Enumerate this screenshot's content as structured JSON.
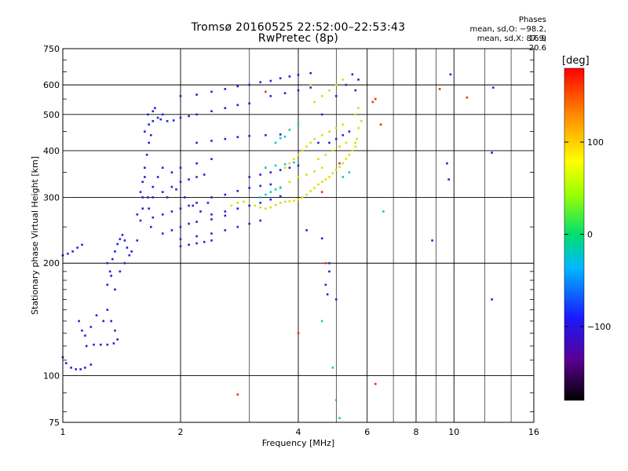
{
  "title": "Tromsø 20160525 22:52:00–22:53:43",
  "subtitle": "RwPretec (8p)",
  "phases": {
    "header": "Phases",
    "o_line": "mean, sd,O: −98.2, 16.9",
    "x_line": "mean, sd,X:  87.9, 20.6"
  },
  "colorbar": {
    "unit": "[deg]",
    "ticks": [
      "100",
      "0",
      "−100"
    ],
    "tick_values": [
      100,
      0,
      -100
    ],
    "range": [
      -180,
      180
    ]
  },
  "chart_data": {
    "type": "scatter",
    "xlabel": "Frequency [MHz]",
    "ylabel": "Stationary phase Virtual Height [km]",
    "x_scale": "log",
    "y_scale": "log",
    "xlim": [
      1,
      16
    ],
    "ylim": [
      75,
      750
    ],
    "x_ticks": [
      1,
      2,
      4,
      6,
      8,
      10,
      16
    ],
    "x_tick_labels": [
      "1",
      "2",
      "4",
      "6",
      "8",
      "10",
      "16"
    ],
    "y_ticks": [
      75,
      100,
      200,
      300,
      400,
      500,
      600,
      750
    ],
    "y_tick_labels": [
      "75",
      "100",
      "200",
      "300",
      "400",
      "500",
      "600",
      "750"
    ],
    "grid": true,
    "series": [
      {
        "role": "O-mode traces (blue/purple)",
        "color": "#2222dd",
        "points": [
          [
            1.0,
            112
          ],
          [
            1.02,
            108
          ],
          [
            1.05,
            105
          ],
          [
            1.08,
            104
          ],
          [
            1.11,
            104
          ],
          [
            1.14,
            105
          ],
          [
            1.18,
            107
          ],
          [
            1.15,
            120
          ],
          [
            1.2,
            121
          ],
          [
            1.25,
            121
          ],
          [
            1.3,
            121
          ],
          [
            1.35,
            122
          ],
          [
            1.38,
            125
          ],
          [
            1.1,
            140
          ],
          [
            1.12,
            132
          ],
          [
            1.14,
            128
          ],
          [
            1.18,
            135
          ],
          [
            1.22,
            145
          ],
          [
            1.27,
            140
          ],
          [
            1.3,
            150
          ],
          [
            1.33,
            140
          ],
          [
            1.36,
            132
          ],
          [
            1.0,
            210
          ],
          [
            1.03,
            212
          ],
          [
            1.06,
            215
          ],
          [
            1.09,
            220
          ],
          [
            1.12,
            224
          ],
          [
            1.3,
            175
          ],
          [
            1.32,
            190
          ],
          [
            1.34,
            205
          ],
          [
            1.36,
            215
          ],
          [
            1.38,
            225
          ],
          [
            1.4,
            232
          ],
          [
            1.42,
            238
          ],
          [
            1.44,
            230
          ],
          [
            1.46,
            220
          ],
          [
            1.3,
            200
          ],
          [
            1.33,
            185
          ],
          [
            1.36,
            170
          ],
          [
            1.4,
            190
          ],
          [
            1.44,
            200
          ],
          [
            1.48,
            210
          ],
          [
            1.5,
            215
          ],
          [
            1.55,
            230
          ],
          [
            1.58,
            260
          ],
          [
            1.6,
            300
          ],
          [
            1.62,
            340
          ],
          [
            1.64,
            390
          ],
          [
            1.66,
            420
          ],
          [
            1.68,
            440
          ],
          [
            1.55,
            270
          ],
          [
            1.6,
            280
          ],
          [
            1.65,
            300
          ],
          [
            1.7,
            320
          ],
          [
            1.75,
            340
          ],
          [
            1.8,
            360
          ],
          [
            1.62,
            450
          ],
          [
            1.66,
            470
          ],
          [
            1.7,
            480
          ],
          [
            1.75,
            490
          ],
          [
            1.8,
            500
          ],
          [
            1.7,
            510
          ],
          [
            1.65,
            500
          ],
          [
            1.72,
            520
          ],
          [
            1.78,
            485
          ],
          [
            1.85,
            480
          ],
          [
            1.92,
            482
          ],
          [
            2.0,
            490
          ],
          [
            2.1,
            495
          ],
          [
            2.2,
            500
          ],
          [
            2.4,
            510
          ],
          [
            2.6,
            520
          ],
          [
            2.8,
            530
          ],
          [
            3.0,
            535
          ],
          [
            2.0,
            560
          ],
          [
            2.2,
            565
          ],
          [
            2.4,
            575
          ],
          [
            2.6,
            585
          ],
          [
            2.8,
            595
          ],
          [
            3.0,
            600
          ],
          [
            3.2,
            610
          ],
          [
            3.4,
            615
          ],
          [
            3.6,
            625
          ],
          [
            3.8,
            632
          ],
          [
            4.0,
            638
          ],
          [
            4.3,
            645
          ],
          [
            3.4,
            560
          ],
          [
            3.7,
            570
          ],
          [
            4.0,
            580
          ],
          [
            4.3,
            590
          ],
          [
            2.2,
            420
          ],
          [
            2.4,
            425
          ],
          [
            2.6,
            430
          ],
          [
            2.8,
            435
          ],
          [
            3.0,
            438
          ],
          [
            3.3,
            440
          ],
          [
            3.6,
            442
          ],
          [
            1.7,
            300
          ],
          [
            1.8,
            310
          ],
          [
            1.9,
            320
          ],
          [
            2.0,
            330
          ],
          [
            2.1,
            335
          ],
          [
            2.2,
            340
          ],
          [
            2.3,
            345
          ],
          [
            1.7,
            265
          ],
          [
            1.8,
            270
          ],
          [
            1.9,
            275
          ],
          [
            2.0,
            280
          ],
          [
            2.1,
            285
          ],
          [
            2.2,
            290
          ],
          [
            1.8,
            240
          ],
          [
            1.9,
            245
          ],
          [
            2.0,
            250
          ],
          [
            2.1,
            255
          ],
          [
            2.2,
            258
          ],
          [
            2.4,
            262
          ],
          [
            2.6,
            268
          ],
          [
            2.0,
            232
          ],
          [
            2.2,
            236
          ],
          [
            2.4,
            240
          ],
          [
            2.6,
            245
          ],
          [
            2.8,
            250
          ],
          [
            3.0,
            255
          ],
          [
            3.2,
            260
          ],
          [
            2.0,
            222
          ],
          [
            2.1,
            224
          ],
          [
            2.2,
            226
          ],
          [
            2.3,
            228
          ],
          [
            2.4,
            230
          ],
          [
            2.4,
            270
          ],
          [
            2.6,
            275
          ],
          [
            2.8,
            280
          ],
          [
            3.0,
            285
          ],
          [
            3.2,
            290
          ],
          [
            3.4,
            296
          ],
          [
            3.6,
            302
          ],
          [
            2.4,
            300
          ],
          [
            2.6,
            305
          ],
          [
            2.8,
            312
          ],
          [
            3.0,
            318
          ],
          [
            3.2,
            322
          ],
          [
            3.4,
            325
          ],
          [
            3.0,
            340
          ],
          [
            3.2,
            345
          ],
          [
            3.4,
            350
          ],
          [
            3.6,
            355
          ],
          [
            3.8,
            360
          ],
          [
            4.0,
            365
          ],
          [
            1.9,
            350
          ],
          [
            2.0,
            360
          ],
          [
            2.2,
            370
          ],
          [
            2.4,
            380
          ],
          [
            1.85,
            300
          ],
          [
            1.95,
            315
          ],
          [
            2.05,
            300
          ],
          [
            2.15,
            285
          ],
          [
            2.25,
            275
          ],
          [
            2.35,
            290
          ],
          [
            1.6,
            330
          ],
          [
            1.62,
            360
          ],
          [
            1.58,
            310
          ],
          [
            1.66,
            280
          ],
          [
            1.68,
            250
          ],
          [
            4.2,
            245
          ],
          [
            4.6,
            233
          ],
          [
            4.8,
            200
          ],
          [
            4.8,
            190
          ],
          [
            4.7,
            175
          ],
          [
            4.75,
            165
          ],
          [
            5.0,
            160
          ],
          [
            9.8,
            640
          ],
          [
            9.6,
            370
          ],
          [
            9.7,
            335
          ],
          [
            8.8,
            230
          ],
          [
            12.5,
            160
          ],
          [
            12.5,
            395
          ],
          [
            12.6,
            590
          ],
          [
            5.6,
            580
          ],
          [
            5.7,
            620
          ],
          [
            5.5,
            640
          ],
          [
            5.3,
            600
          ],
          [
            5.0,
            560
          ],
          [
            4.6,
            500
          ],
          [
            4.5,
            420
          ],
          [
            4.8,
            420
          ],
          [
            5.0,
            430
          ],
          [
            5.2,
            440
          ],
          [
            5.4,
            450
          ]
        ]
      },
      {
        "role": "X-mode traces (yellow/green)",
        "color": "#dddd00",
        "points": [
          [
            2.7,
            285
          ],
          [
            2.8,
            290
          ],
          [
            2.9,
            292
          ],
          [
            3.0,
            290
          ],
          [
            3.1,
            285
          ],
          [
            3.2,
            282
          ],
          [
            3.3,
            280
          ],
          [
            3.4,
            282
          ],
          [
            3.5,
            286
          ],
          [
            3.6,
            290
          ],
          [
            3.7,
            292
          ],
          [
            3.8,
            293
          ],
          [
            3.9,
            294
          ],
          [
            4.0,
            296
          ],
          [
            4.1,
            300
          ],
          [
            4.2,
            305
          ],
          [
            4.3,
            312
          ],
          [
            4.4,
            318
          ],
          [
            4.5,
            325
          ],
          [
            4.6,
            330
          ],
          [
            4.7,
            335
          ],
          [
            4.8,
            340
          ],
          [
            4.9,
            348
          ],
          [
            5.0,
            355
          ],
          [
            5.1,
            362
          ],
          [
            5.2,
            370
          ],
          [
            5.3,
            380
          ],
          [
            5.4,
            390
          ],
          [
            5.5,
            400
          ],
          [
            5.6,
            410
          ],
          [
            5.6,
            420
          ],
          [
            5.65,
            430
          ],
          [
            3.7,
            360
          ],
          [
            3.8,
            370
          ],
          [
            3.9,
            380
          ],
          [
            4.0,
            390
          ],
          [
            4.1,
            400
          ],
          [
            4.2,
            410
          ],
          [
            4.3,
            420
          ],
          [
            4.4,
            430
          ],
          [
            4.6,
            440
          ],
          [
            4.8,
            450
          ],
          [
            5.0,
            460
          ],
          [
            5.2,
            470
          ],
          [
            3.6,
            320
          ],
          [
            3.8,
            330
          ],
          [
            4.0,
            340
          ],
          [
            4.2,
            345
          ],
          [
            4.4,
            352
          ],
          [
            4.6,
            360
          ],
          [
            4.5,
            380
          ],
          [
            4.7,
            390
          ],
          [
            4.9,
            400
          ],
          [
            5.1,
            410
          ],
          [
            5.3,
            420
          ],
          [
            4.6,
            560
          ],
          [
            4.8,
            580
          ],
          [
            5.0,
            600
          ],
          [
            5.2,
            620
          ],
          [
            4.4,
            540
          ],
          [
            4.3,
            600
          ],
          [
            5.6,
            500
          ],
          [
            5.7,
            520
          ],
          [
            5.8,
            480
          ],
          [
            5.7,
            460
          ]
        ]
      },
      {
        "role": "cyan / green scatter",
        "color": "#00cccc",
        "points": [
          [
            3.2,
            300
          ],
          [
            3.3,
            305
          ],
          [
            3.4,
            310
          ],
          [
            3.5,
            315
          ],
          [
            3.6,
            318
          ],
          [
            3.3,
            360
          ],
          [
            3.5,
            365
          ],
          [
            3.7,
            368
          ],
          [
            3.9,
            372
          ],
          [
            3.5,
            420
          ],
          [
            3.6,
            432
          ],
          [
            3.7,
            436
          ],
          [
            4.6,
            140
          ],
          [
            4.9,
            105
          ],
          [
            5.0,
            86
          ],
          [
            5.1,
            77
          ],
          [
            6.6,
            275
          ],
          [
            3.8,
            455
          ],
          [
            4.0,
            470
          ],
          [
            5.4,
            350
          ],
          [
            5.2,
            340
          ]
        ]
      },
      {
        "role": "orange / red outliers",
        "color": "#ee3300",
        "points": [
          [
            6.3,
            95
          ],
          [
            6.3,
            550
          ],
          [
            6.2,
            540
          ],
          [
            9.2,
            585
          ],
          [
            10.8,
            555
          ],
          [
            4.6,
            310
          ],
          [
            4.7,
            200
          ],
          [
            4.0,
            130
          ],
          [
            2.8,
            89
          ],
          [
            6.5,
            470
          ],
          [
            5.1,
            370
          ],
          [
            3.3,
            575
          ]
        ]
      }
    ]
  }
}
